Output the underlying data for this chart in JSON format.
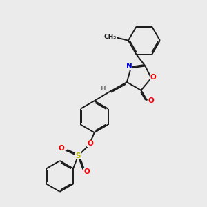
{
  "bg_color": "#ebebeb",
  "bond_color": "#1a1a1a",
  "bond_width": 1.4,
  "dbo": 0.055,
  "atom_colors": {
    "N": "#0000ee",
    "O": "#ee0000",
    "S": "#bbbb00",
    "H": "#777777"
  },
  "figsize": [
    3.0,
    3.0
  ],
  "dpi": 100
}
